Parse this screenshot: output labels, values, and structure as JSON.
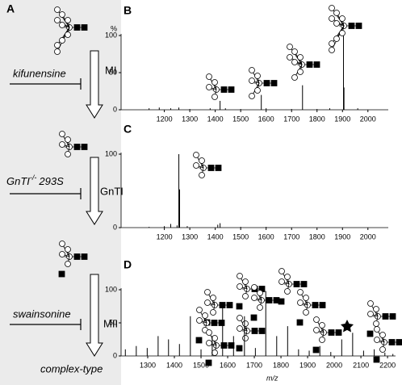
{
  "diagram": {
    "panel_label": "A",
    "inhibitor_1": "kifunensine",
    "enzyme_1": "MI",
    "cell_line": "GnTI",
    "cell_line_sup": "-/-",
    "cell_line_suffix": "293S",
    "enzyme_2": "GnTI",
    "inhibitor_2": "swainsonine",
    "enzyme_3": "MII",
    "product": "complex-type"
  },
  "chart_data": [
    {
      "type": "stem",
      "panel_label": "B",
      "y_label": "%",
      "color": "#000000",
      "x": [
        1140,
        1180,
        1225,
        1257,
        1300,
        1380,
        1419,
        1440,
        1500,
        1581,
        1600,
        1700,
        1743,
        1800,
        1850,
        1904,
        1906,
        1960
      ],
      "values": [
        2,
        3,
        2,
        3,
        1,
        2,
        12,
        2,
        1,
        20,
        2,
        1,
        33,
        1,
        2,
        100,
        30,
        2
      ],
      "xlim": [
        1030,
        2080
      ],
      "ylim": [
        0,
        100
      ],
      "xticks": [
        1200,
        1300,
        1400,
        1500,
        1600,
        1700,
        1800,
        1900,
        2000
      ],
      "yticks": [
        0,
        50,
        100
      ]
    },
    {
      "type": "stem",
      "panel_label": "C",
      "color": "#000000",
      "x": [
        1140,
        1200,
        1225,
        1250,
        1257,
        1260,
        1290,
        1410,
        1419,
        1500,
        1600
      ],
      "values": [
        1,
        2,
        5,
        3,
        100,
        52,
        2,
        4,
        6,
        1,
        1
      ],
      "xlim": [
        1030,
        2080
      ],
      "ylim": [
        0,
        100
      ],
      "xticks": [
        1200,
        1300,
        1400,
        1500,
        1600,
        1700,
        1800,
        1900,
        2000
      ],
      "yticks": [
        0,
        100
      ]
    },
    {
      "type": "stem",
      "panel_label": "D",
      "x_label": "m/z",
      "color": "#000000",
      "x": [
        1216,
        1257,
        1298,
        1339,
        1378,
        1419,
        1460,
        1500,
        1542,
        1581,
        1622,
        1663,
        1704,
        1743,
        1784,
        1825,
        1866,
        1906,
        1946,
        1987,
        2028,
        2069,
        2110,
        2150,
        2190,
        2220
      ],
      "values": [
        10,
        15,
        12,
        30,
        25,
        18,
        60,
        10,
        30,
        75,
        30,
        60,
        12,
        98,
        30,
        45,
        10,
        8,
        15,
        6,
        25,
        35,
        8,
        10,
        5,
        3
      ],
      "xlim": [
        1200,
        2230
      ],
      "ylim": [
        0,
        100
      ],
      "xticks": [
        1300,
        1400,
        1500,
        1600,
        1700,
        1800,
        1900,
        2000,
        2100,
        2200
      ],
      "yticks": [
        0,
        50,
        100
      ]
    }
  ]
}
